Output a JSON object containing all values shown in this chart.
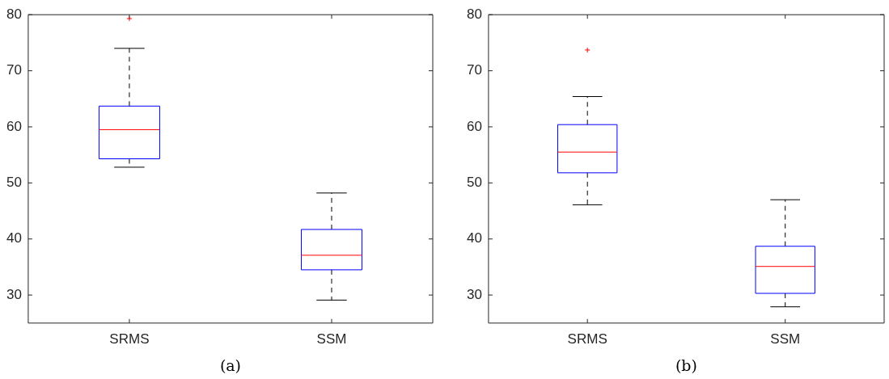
{
  "chart_data": [
    {
      "type": "box",
      "xlabel": "(a)",
      "categories": [
        "SRMS",
        "SSM"
      ],
      "ylim": [
        25,
        80
      ],
      "yticks": [
        30,
        40,
        50,
        60,
        70,
        80
      ],
      "grid": false,
      "legend": false,
      "series": [
        {
          "color": "#0000ff",
          "boxes": [
            {
              "low": 52.8,
              "q1": 54.3,
              "median": 59.5,
              "q3": 63.7,
              "high": 74.0,
              "outliers": [
                79.3
              ]
            },
            {
              "low": 29.1,
              "q1": 34.5,
              "median": 37.1,
              "q3": 41.7,
              "high": 48.2
            }
          ]
        }
      ]
    },
    {
      "type": "box",
      "xlabel": "(b)",
      "categories": [
        "SRMS",
        "SSM"
      ],
      "ylim": [
        25,
        80
      ],
      "yticks": [
        30,
        40,
        50,
        60,
        70,
        80
      ],
      "grid": false,
      "legend": false,
      "series": [
        {
          "color": "#0000ff",
          "boxes": [
            {
              "low": 46.1,
              "q1": 51.8,
              "median": 55.5,
              "q3": 60.4,
              "high": 65.4,
              "outliers": [
                73.7
              ]
            },
            {
              "low": 27.9,
              "q1": 30.3,
              "median": 35.1,
              "q3": 38.7,
              "high": 47.0
            }
          ]
        }
      ]
    }
  ]
}
